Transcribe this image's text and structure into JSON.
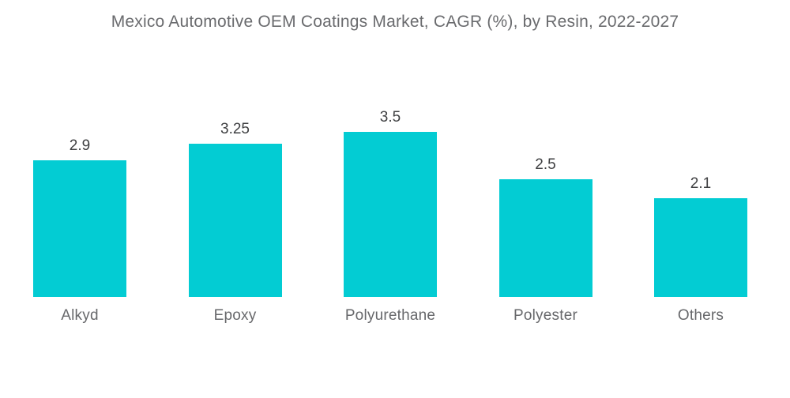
{
  "page": {
    "background": "#ffffff"
  },
  "chart_data": {
    "type": "bar",
    "title": "Mexico Automotive OEM Coatings Market, CAGR (%), by Resin, 2022-2027",
    "categories": [
      "Alkyd",
      "Epoxy",
      "Polyurethane",
      "Polyester",
      "Others"
    ],
    "values": [
      2.9,
      3.25,
      3.5,
      2.5,
      2.1
    ],
    "xlabel": "",
    "ylabel": "",
    "ylim": [
      0,
      4
    ],
    "grid": false,
    "legend": false,
    "data_labels": true,
    "colors": {
      "bar": "#03CCD3",
      "title_text": "#6A6B6E",
      "value_label_text": "#3E3F41",
      "category_label_text": "#67686B"
    }
  }
}
